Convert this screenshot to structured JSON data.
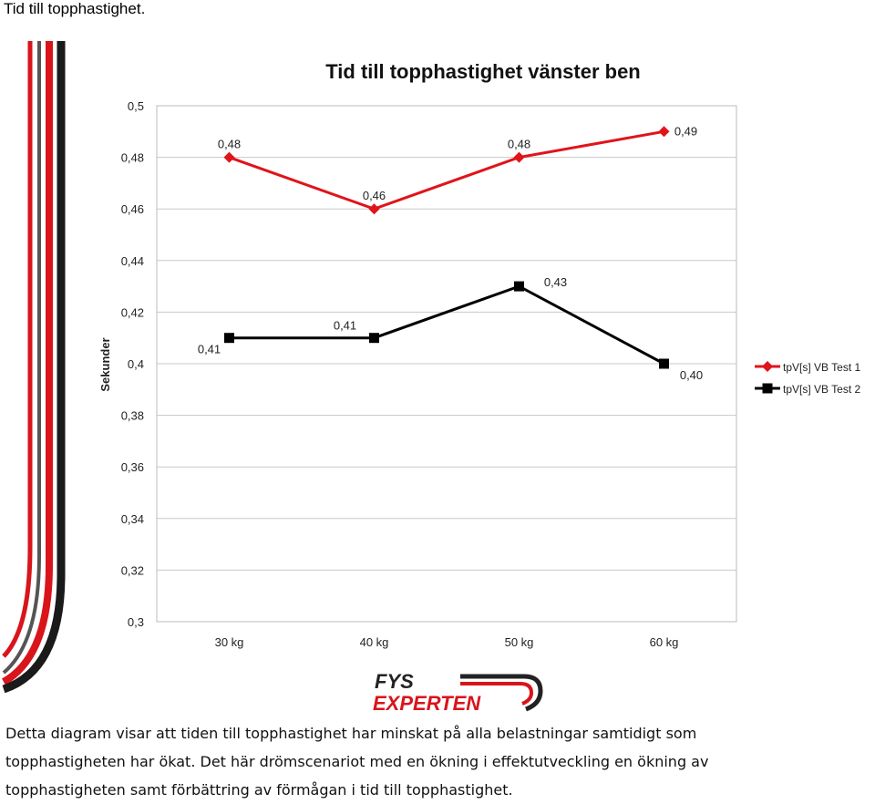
{
  "header": "Tid till topphastighet.",
  "chart_data": {
    "type": "line",
    "title": "Tid till topphastighet vänster ben",
    "y_label": "Sekunder",
    "categories": [
      "30 kg",
      "40 kg",
      "50 kg",
      "60 kg"
    ],
    "series": [
      {
        "name": "tpV[s] VB Test 1",
        "color": "#e0141b",
        "values": [
          0.48,
          0.46,
          0.48,
          0.49
        ],
        "value_labels": [
          "0,48",
          "0,46",
          "0,48",
          "0,49"
        ]
      },
      {
        "name": "tpV[s] VB Test 2",
        "color": "#000000",
        "values": [
          0.41,
          0.41,
          0.43,
          0.4
        ],
        "value_labels": [
          "0,41",
          "0,41",
          "0,43",
          "0,40"
        ]
      }
    ],
    "ylim": [
      0.3,
      0.5
    ],
    "yticks": [
      {
        "value": 0.3,
        "label": "0,3"
      },
      {
        "value": 0.32,
        "label": "0,32"
      },
      {
        "value": 0.34,
        "label": "0,34"
      },
      {
        "value": 0.36,
        "label": "0,36"
      },
      {
        "value": 0.38,
        "label": "0,38"
      },
      {
        "value": 0.4,
        "label": "0,4"
      },
      {
        "value": 0.42,
        "label": "0,42"
      },
      {
        "value": 0.44,
        "label": "0,44"
      },
      {
        "value": 0.46,
        "label": "0,46"
      },
      {
        "value": 0.48,
        "label": "0,48"
      },
      {
        "value": 0.5,
        "label": "0,5"
      }
    ],
    "grid": true,
    "legend": "right"
  },
  "logo": {
    "line1": "FYS",
    "line2": "EXPERTEN"
  },
  "paragraph": "Detta diagram visar att tiden till topphastighet har minskat på alla belastningar samtidigt som topphastigheten har ökat. Det här drömscenariot med en ökning i effektutveckling en ökning av topphastigheten samt förbättring av förmågan i tid till topphastighet."
}
